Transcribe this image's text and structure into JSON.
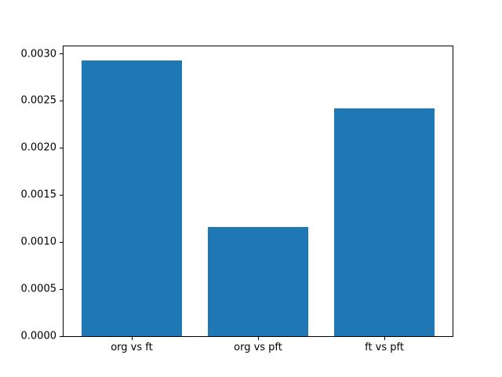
{
  "figure": {
    "background": "#ffffff"
  },
  "chart_data": {
    "type": "bar",
    "title": "",
    "xlabel": "",
    "ylabel": "",
    "categories": [
      "org vs ft",
      "org vs pft",
      "ft vs pft"
    ],
    "values": [
      0.00293,
      0.00116,
      0.00242
    ],
    "bar_color": "#1f77b4",
    "bar_width": 0.8,
    "xlim": [
      -0.54,
      2.54
    ],
    "ylim": [
      0,
      0.00308
    ],
    "yticks": [
      0.0,
      0.0005,
      0.001,
      0.0015,
      0.002,
      0.0025,
      0.003
    ],
    "yticklabels": [
      "0.0000",
      "0.0005",
      "0.0010",
      "0.0015",
      "0.0020",
      "0.0025",
      "0.0030"
    ],
    "grid": false,
    "legend": null
  }
}
